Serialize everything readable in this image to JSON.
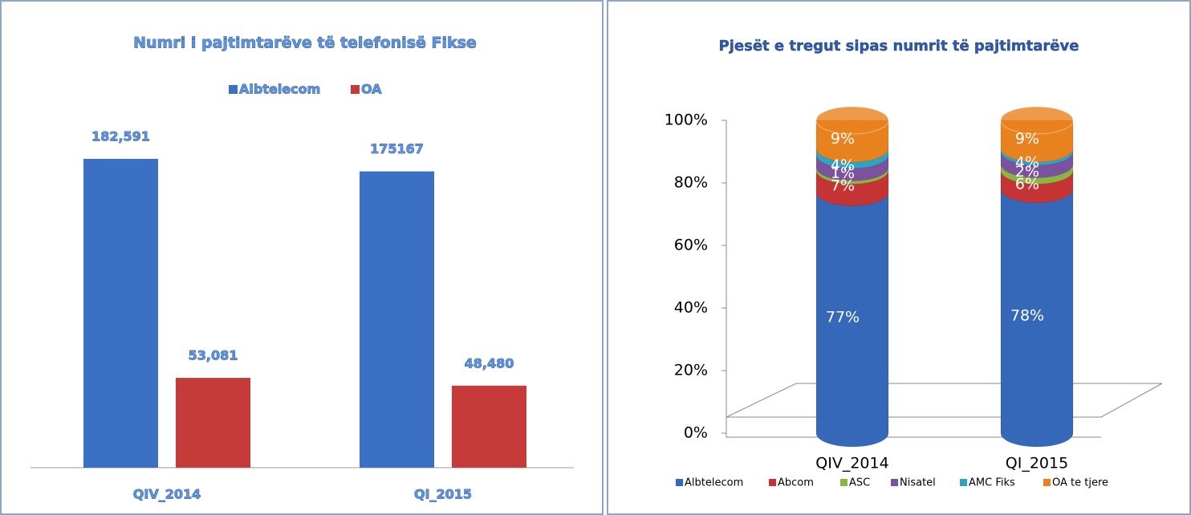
{
  "chart_data": [
    {
      "type": "bar",
      "title": "Numri i pajtimtarëve të telefonisë Fikse",
      "categories": [
        "QIV_2014",
        "QI_2015"
      ],
      "series": [
        {
          "name": "Albtelecom",
          "color": "#3b70c4",
          "values": [
            182591,
            175167
          ],
          "value_labels": [
            "182,591",
            "175167"
          ]
        },
        {
          "name": "OA",
          "color": "#c63a3a",
          "values": [
            53081,
            48480
          ],
          "value_labels": [
            "53,081",
            "48,480"
          ]
        }
      ]
    },
    {
      "type": "stacked-cylinder",
      "title": "Pjesët e tregut sipas numrit të pajtimtarëve",
      "categories": [
        "QIV_2014",
        "QI_2015"
      ],
      "ylim": [
        0,
        100
      ],
      "yticks": [
        {
          "value": 0,
          "label": "0%"
        },
        {
          "value": 20,
          "label": "20%"
        },
        {
          "value": 40,
          "label": "40%"
        },
        {
          "value": 60,
          "label": "60%"
        },
        {
          "value": 80,
          "label": "80%"
        },
        {
          "value": 100,
          "label": "100%"
        }
      ],
      "series": [
        {
          "name": "Albtelecom",
          "color": "#3568b8",
          "values": [
            77,
            78
          ],
          "value_labels": [
            "77%",
            "78%"
          ]
        },
        {
          "name": "Abcom",
          "color": "#c43434",
          "values": [
            7,
            6
          ],
          "value_labels": [
            "7%",
            "6%"
          ]
        },
        {
          "name": "ASC",
          "color": "#8cb440",
          "values": [
            1,
            2
          ],
          "value_labels": [
            "1%",
            "2%"
          ]
        },
        {
          "name": "Nisatel",
          "color": "#7a529e",
          "values": [
            4,
            4
          ],
          "value_labels": [
            "4%",
            "4%"
          ]
        },
        {
          "name": "AMC Fiks",
          "color": "#2fa4c0",
          "values": [
            2,
            1
          ]
        },
        {
          "name": "OA te tjere",
          "color": "#e8821e",
          "values": [
            9,
            9
          ],
          "value_labels": [
            "9%",
            "9%"
          ]
        }
      ]
    }
  ]
}
